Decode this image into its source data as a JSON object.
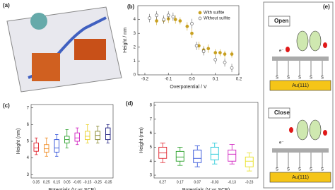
{
  "panels": {
    "a": "(a)",
    "e": "(e)"
  },
  "diagram": {
    "open": "Open",
    "close": "Close",
    "electrode": "Au(111)",
    "electron": "e⁻",
    "sulfur": "S"
  },
  "chart_data": [
    {
      "type": "scatter",
      "panel": "(b)",
      "y_label": "Height / nm",
      "x_label": "Overpotential / V",
      "xlim": [
        -0.23,
        0.2
      ],
      "xticks": [
        -0.2,
        -0.1,
        {
          "value": 0,
          "label": "0.0"
        },
        0.1,
        0.2
      ],
      "ylim": [
        0,
        5
      ],
      "yticks": [
        0,
        1,
        2,
        3,
        4
      ],
      "legend": "upper right",
      "series": [
        {
          "name": "With sulfite",
          "color": "#c8a020",
          "filled": true,
          "x": [
            -0.15,
            -0.12,
            -0.1,
            -0.07,
            -0.05,
            -0.02,
            0.0,
            0.03,
            0.05,
            0.07,
            0.1,
            0.12,
            0.14,
            0.17
          ],
          "values": [
            3.9,
            3.95,
            4.05,
            4.0,
            3.9,
            3.5,
            3.0,
            2.1,
            1.8,
            1.9,
            1.6,
            1.6,
            1.5,
            1.5
          ],
          "errors": [
            0.3,
            0.25,
            0.3,
            0.3,
            0.25,
            0.3,
            0.35,
            0.3,
            0.3,
            0.3,
            0.25,
            0.25,
            0.25,
            0.25
          ]
        },
        {
          "name": "Without sulfite",
          "color": "#666666",
          "filled": false,
          "x": [
            -0.18,
            -0.15,
            -0.12,
            -0.1,
            -0.08,
            0.0,
            0.02,
            0.05,
            0.1,
            0.14,
            0.17
          ],
          "values": [
            4.1,
            4.3,
            4.0,
            4.3,
            4.2,
            3.7,
            2.1,
            1.7,
            1.1,
            0.9,
            0.5
          ],
          "errors": [
            0.3,
            0.3,
            0.3,
            0.3,
            0.3,
            0.35,
            0.3,
            0.3,
            0.3,
            0.3,
            0.3
          ]
        }
      ]
    },
    {
      "type": "box",
      "panel": "(c)",
      "y_label": "Height (nm)",
      "x_label": "Potentials (V vs SCE)",
      "ylim": [
        2.8,
        7.2
      ],
      "yticks": [
        3,
        4,
        5,
        6,
        7
      ],
      "categories": [
        "0.35",
        "0.25",
        "0.15",
        "0.05",
        "-0.05",
        "-0.15",
        "-0.25",
        "-0.35"
      ],
      "colors": [
        "#e0202a",
        "#f08a20",
        "#2a4cd8",
        "#2aa02a",
        "#d020c0",
        "#e8d020",
        "#808020",
        "#202080"
      ],
      "boxes": [
        [
          4.2,
          4.4,
          4.6,
          4.9,
          5.2
        ],
        [
          4.1,
          4.35,
          4.55,
          4.8,
          5.2
        ],
        [
          4.1,
          4.35,
          4.6,
          5.1,
          5.4
        ],
        [
          4.6,
          4.9,
          5.1,
          5.3,
          5.7
        ],
        [
          4.8,
          5.0,
          5.2,
          5.5,
          5.8
        ],
        [
          4.9,
          5.1,
          5.3,
          5.6,
          6.0
        ],
        [
          4.9,
          5.1,
          5.35,
          5.6,
          5.9
        ],
        [
          4.9,
          5.1,
          5.4,
          5.8,
          6.0
        ]
      ]
    },
    {
      "type": "box",
      "panel": "(d)",
      "y_label": "Height (nm)",
      "x_label": "Potentials (V vs SCE)",
      "ylim": [
        2.8,
        8.2
      ],
      "yticks": [
        3,
        4,
        5,
        6,
        7,
        8
      ],
      "categories": [
        "0.27",
        "0.17",
        "0.07",
        "-0.03",
        "-0.13",
        "-0.23"
      ],
      "colors": [
        "#e0202a",
        "#2aa02a",
        "#2a4cd8",
        "#20c8d8",
        "#d020c0",
        "#e8e020"
      ],
      "boxes": [
        [
          3.9,
          4.2,
          4.6,
          5.0,
          5.3
        ],
        [
          3.7,
          4.0,
          4.3,
          4.7,
          5.0
        ],
        [
          3.6,
          3.9,
          4.2,
          4.8,
          5.1
        ],
        [
          3.8,
          4.1,
          4.5,
          5.0,
          5.3
        ],
        [
          3.8,
          4.0,
          4.5,
          4.8,
          5.2
        ],
        [
          3.3,
          3.6,
          4.0,
          4.3,
          4.6
        ]
      ]
    }
  ]
}
